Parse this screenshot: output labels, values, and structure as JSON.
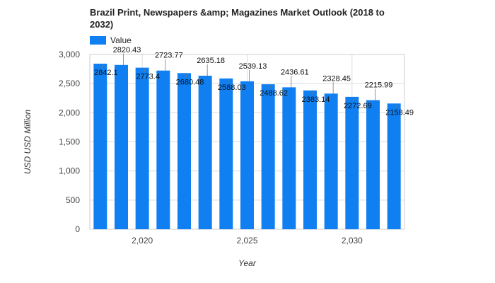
{
  "chart_data": {
    "type": "bar",
    "title": "Brazil Print, Newspapers &amp; Magazines Market Outlook (2018 to 2032)",
    "xlabel": "Year",
    "ylabel": "USD USD Million",
    "legend": {
      "position": "top-left",
      "entries": [
        "Value"
      ]
    },
    "x": [
      2018,
      2019,
      2020,
      2021,
      2022,
      2023,
      2024,
      2025,
      2026,
      2027,
      2028,
      2029,
      2030,
      2031,
      2032
    ],
    "series": [
      {
        "name": "Value",
        "color": "#0f7ff2",
        "values": [
          2842.1,
          2820.43,
          2773.4,
          2723.77,
          2680.48,
          2635.18,
          2588.03,
          2539.13,
          2488.62,
          2436.61,
          2383.14,
          2328.45,
          2272.69,
          2215.99,
          2158.49
        ],
        "labels": [
          "2842.1",
          "2820.43",
          "2773.4",
          "2723.77",
          "2680.48",
          "2635.18",
          "2588.03",
          "2539.13",
          "2488.62",
          "2436.61",
          "2383.14",
          "2328.45",
          "2272.69",
          "2215.99",
          "2158.49"
        ]
      }
    ],
    "ylim": [
      0,
      3000
    ],
    "yticks": [
      0,
      500,
      1000,
      1500,
      2000,
      2500,
      3000
    ],
    "ytick_labels": [
      "0",
      "500",
      "1,000",
      "1,500",
      "2,000",
      "2,500",
      "3,000"
    ],
    "xticks": [
      2020,
      2025,
      2030
    ],
    "xtick_labels": [
      "2,020",
      "2,025",
      "2,030"
    ],
    "grid": true
  }
}
